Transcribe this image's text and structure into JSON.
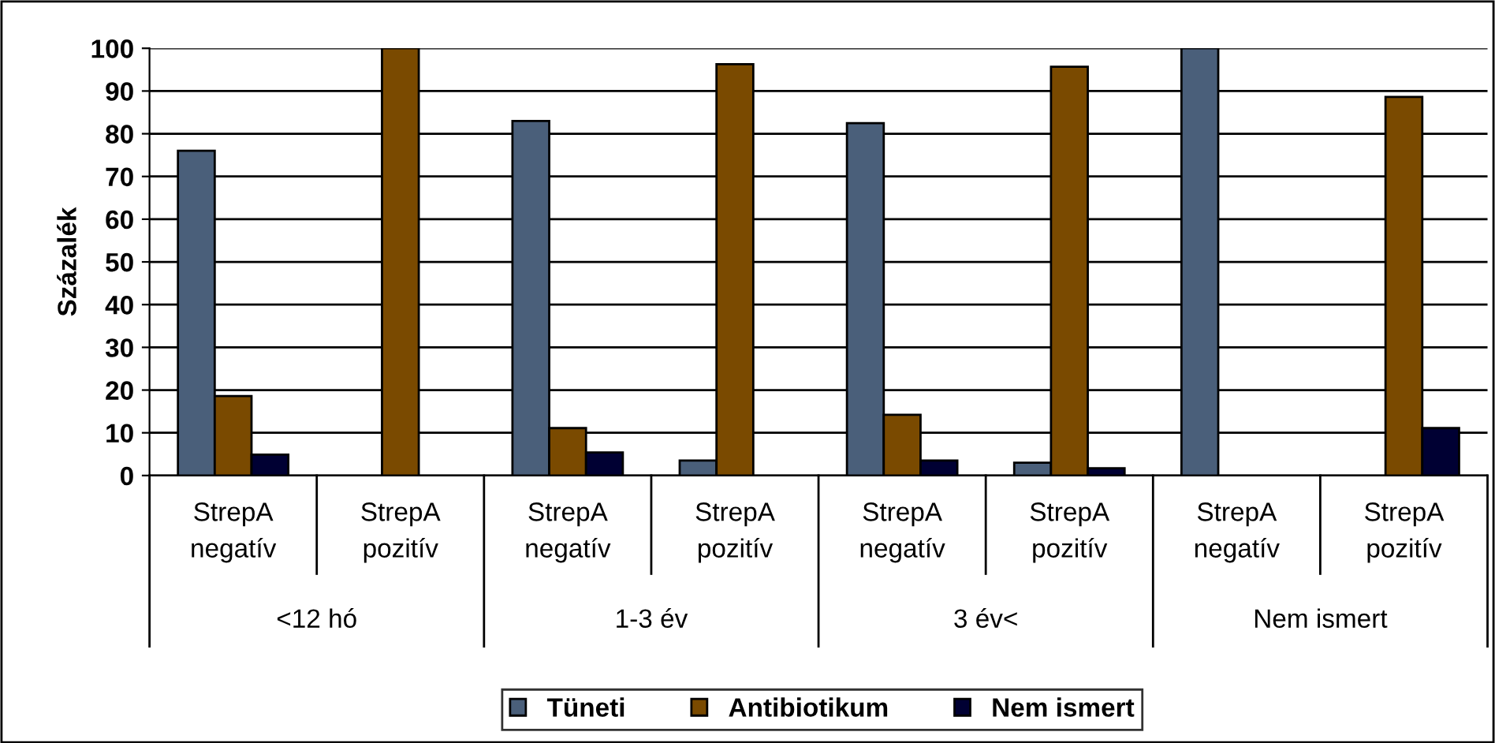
{
  "chart_data": {
    "type": "bar",
    "ylabel": "Százalék",
    "categories": [
      "StrepA\nnegatív",
      "StrepA\npozitív",
      "StrepA\nnegatív",
      "StrepA\npozitív",
      "StrepA\nnegatív",
      "StrepA\npozitív",
      "StrepA\nnegatív",
      "StrepA\npozitív"
    ],
    "series": [
      {
        "name": "Tüneti",
        "color": "#4a5f7a",
        "values": [
          76,
          null,
          83,
          3.5,
          82.5,
          3,
          100,
          null
        ]
      },
      {
        "name": "Antibiotikum",
        "color": "#7a4a00",
        "values": [
          18.6,
          100,
          11.1,
          96.3,
          14.2,
          95.7,
          null,
          88.6
        ]
      },
      {
        "name": "Nem ismert",
        "color": "#000033",
        "values": [
          4.9,
          null,
          5.4,
          null,
          3.5,
          1.7,
          null,
          11.1
        ]
      }
    ],
    "annotations": [
      "<12 hó",
      "1-3 év",
      "3 év<",
      "Nem ismert"
    ],
    "ylim": [
      0,
      100
    ],
    "yticks": [
      0,
      10,
      20,
      30,
      40,
      50,
      60,
      70,
      80,
      90,
      100
    ],
    "grid": "y",
    "legend": "bottom"
  }
}
